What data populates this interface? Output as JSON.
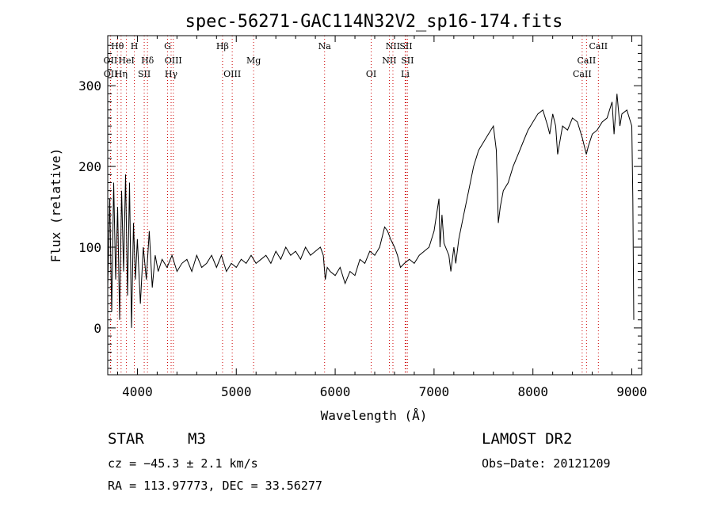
{
  "chart_data": {
    "type": "line",
    "title": "spec-56271-GAC114N32V2_sp16-174.fits",
    "xlabel": "Wavelength (Å)",
    "ylabel": "Flux (relative)",
    "xlim": [
      3700,
      9100
    ],
    "ylim": [
      -58,
      362
    ],
    "xticks": [
      4000,
      5000,
      6000,
      7000,
      8000,
      9000
    ],
    "xtick_labels": [
      "4000",
      "5000",
      "6000",
      "7000",
      "8000",
      "9000"
    ],
    "yticks": [
      0,
      100,
      200,
      300
    ],
    "ytick_labels": [
      "0",
      "100",
      "200",
      "300"
    ],
    "grid": false,
    "line_color": "#000000",
    "marker_line_color": "#cc0000",
    "series": [
      {
        "name": "",
        "x": [
          3700,
          3720,
          3740,
          3760,
          3780,
          3800,
          3820,
          3840,
          3860,
          3880,
          3900,
          3920,
          3940,
          3960,
          3980,
          4000,
          4030,
          4060,
          4090,
          4120,
          4150,
          4180,
          4210,
          4250,
          4300,
          4350,
          4400,
          4450,
          4500,
          4550,
          4600,
          4650,
          4700,
          4750,
          4800,
          4850,
          4900,
          4950,
          5000,
          5050,
          5100,
          5150,
          5200,
          5250,
          5300,
          5350,
          5400,
          5450,
          5500,
          5550,
          5600,
          5650,
          5700,
          5750,
          5800,
          5850,
          5880,
          5900,
          5920,
          5950,
          6000,
          6050,
          6100,
          6150,
          6200,
          6250,
          6300,
          6350,
          6400,
          6450,
          6500,
          6530,
          6560,
          6580,
          6600,
          6630,
          6660,
          6700,
          6750,
          6800,
          6850,
          6900,
          6950,
          7000,
          7050,
          7060,
          7080,
          7100,
          7150,
          7170,
          7200,
          7220,
          7250,
          7300,
          7350,
          7400,
          7450,
          7500,
          7550,
          7600,
          7630,
          7650,
          7670,
          7700,
          7750,
          7800,
          7850,
          7900,
          7950,
          8000,
          8050,
          8100,
          8150,
          8170,
          8200,
          8230,
          8250,
          8300,
          8350,
          8400,
          8450,
          8500,
          8540,
          8560,
          8600,
          8650,
          8700,
          8750,
          8800,
          8820,
          8850,
          8880,
          8900,
          8950,
          9000,
          9010,
          9020
        ],
        "y": [
          50,
          160,
          20,
          180,
          60,
          150,
          10,
          170,
          70,
          190,
          40,
          180,
          0,
          130,
          60,
          110,
          30,
          100,
          60,
          120,
          50,
          90,
          70,
          85,
          75,
          90,
          70,
          80,
          85,
          70,
          90,
          75,
          80,
          90,
          75,
          90,
          70,
          80,
          75,
          85,
          80,
          90,
          80,
          85,
          90,
          80,
          95,
          85,
          100,
          90,
          95,
          85,
          100,
          90,
          95,
          100,
          90,
          60,
          75,
          70,
          65,
          75,
          55,
          70,
          65,
          85,
          80,
          95,
          90,
          100,
          125,
          120,
          110,
          105,
          100,
          90,
          75,
          80,
          85,
          80,
          90,
          95,
          100,
          120,
          160,
          100,
          140,
          105,
          90,
          70,
          100,
          80,
          110,
          140,
          170,
          200,
          220,
          230,
          240,
          250,
          220,
          130,
          150,
          170,
          180,
          200,
          215,
          230,
          245,
          255,
          265,
          270,
          250,
          240,
          265,
          250,
          215,
          250,
          245,
          260,
          255,
          235,
          215,
          225,
          240,
          245,
          255,
          260,
          280,
          240,
          290,
          250,
          265,
          270,
          250,
          160,
          10
        ]
      }
    ],
    "line_markers": [
      {
        "label": "Hθ",
        "wavelength": 3798,
        "row": 0
      },
      {
        "label": "OII",
        "wavelength": 3727,
        "row": 1
      },
      {
        "label": "OII",
        "wavelength": 3729,
        "row": 2
      },
      {
        "label": "Hη",
        "wavelength": 3835,
        "row": 2
      },
      {
        "label": "HeI",
        "wavelength": 3889,
        "row": 1
      },
      {
        "label": "H",
        "wavelength": 3969,
        "row": 0
      },
      {
        "label": "Hδ",
        "wavelength": 4102,
        "row": 1
      },
      {
        "label": "SII",
        "wavelength": 4069,
        "row": 2
      },
      {
        "label": "G",
        "wavelength": 4305,
        "row": 0
      },
      {
        "label": "OIII",
        "wavelength": 4363,
        "row": 1
      },
      {
        "label": "Hγ",
        "wavelength": 4341,
        "row": 2
      },
      {
        "label": "Hβ",
        "wavelength": 4861,
        "row": 0
      },
      {
        "label": "Mg",
        "wavelength": 5175,
        "row": 1
      },
      {
        "label": "OIII",
        "wavelength": 4959,
        "row": 2
      },
      {
        "label": "Na",
        "wavelength": 5893,
        "row": 0
      },
      {
        "label": "OI",
        "wavelength": 6364,
        "row": 2
      },
      {
        "label": "NII",
        "wavelength": 6584,
        "row": 0
      },
      {
        "label": "SII",
        "wavelength": 6716,
        "row": 0
      },
      {
        "label": "NII",
        "wavelength": 6548,
        "row": 1
      },
      {
        "label": "SII",
        "wavelength": 6731,
        "row": 1
      },
      {
        "label": "Li",
        "wavelength": 6708,
        "row": 2
      },
      {
        "label": "CaII",
        "wavelength": 8662,
        "row": 0
      },
      {
        "label": "CaII",
        "wavelength": 8542,
        "row": 1
      },
      {
        "label": "CaII",
        "wavelength": 8498,
        "row": 2
      }
    ]
  },
  "info": {
    "class_label": "STAR",
    "subclass": "M3",
    "survey": "LAMOST DR2",
    "velocity": "cz = −45.3 ± 2.1 km/s",
    "obs_date": "Obs−Date: 20121209",
    "coords": "RA = 113.97773, DEC =  33.56277"
  }
}
